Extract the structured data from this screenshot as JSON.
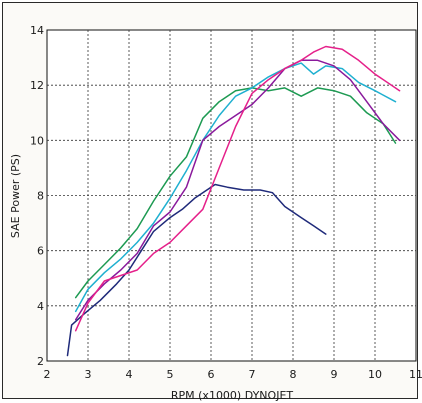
{
  "chart_data": {
    "type": "line",
    "title": "",
    "xlabel": "RPM (x1000)  DYNOJET",
    "ylabel": "SAE Power (PS)",
    "xlim": [
      2,
      11
    ],
    "ylim": [
      2,
      14
    ],
    "x_ticks": [
      "2",
      "3",
      "4",
      "5",
      "6",
      "7",
      "8",
      "9",
      "10",
      "11"
    ],
    "y_ticks": [
      "2",
      "4",
      "6",
      "8",
      "10",
      "12",
      "14"
    ],
    "grid": true,
    "legend": "none",
    "series": [
      {
        "color": "#1f2a7a",
        "points": [
          [
            2.5,
            2.2
          ],
          [
            2.6,
            3.3
          ],
          [
            2.9,
            3.7
          ],
          [
            3.3,
            4.2
          ],
          [
            3.7,
            4.8
          ],
          [
            4.0,
            5.3
          ],
          [
            4.3,
            6.0
          ],
          [
            4.6,
            6.7
          ],
          [
            5.0,
            7.2
          ],
          [
            5.3,
            7.5
          ],
          [
            5.6,
            7.9
          ],
          [
            5.9,
            8.2
          ],
          [
            6.1,
            8.4
          ],
          [
            6.4,
            8.3
          ],
          [
            6.8,
            8.2
          ],
          [
            7.2,
            8.2
          ],
          [
            7.5,
            8.1
          ],
          [
            7.8,
            7.6
          ],
          [
            8.2,
            7.2
          ],
          [
            8.5,
            6.9
          ],
          [
            8.8,
            6.6
          ]
        ]
      },
      {
        "color": "#1d9a52",
        "points": [
          [
            2.7,
            4.3
          ],
          [
            3.0,
            4.9
          ],
          [
            3.4,
            5.5
          ],
          [
            3.8,
            6.1
          ],
          [
            4.2,
            6.8
          ],
          [
            4.6,
            7.8
          ],
          [
            5.0,
            8.7
          ],
          [
            5.4,
            9.4
          ],
          [
            5.8,
            10.8
          ],
          [
            6.2,
            11.4
          ],
          [
            6.6,
            11.8
          ],
          [
            7.0,
            11.9
          ],
          [
            7.4,
            11.8
          ],
          [
            7.8,
            11.9
          ],
          [
            8.2,
            11.6
          ],
          [
            8.6,
            11.9
          ],
          [
            9.0,
            11.8
          ],
          [
            9.4,
            11.6
          ],
          [
            9.8,
            11.0
          ],
          [
            10.2,
            10.6
          ],
          [
            10.5,
            9.9
          ]
        ]
      },
      {
        "color": "#1fb0d0",
        "points": [
          [
            2.7,
            3.8
          ],
          [
            3.0,
            4.6
          ],
          [
            3.4,
            5.2
          ],
          [
            3.8,
            5.7
          ],
          [
            4.2,
            6.3
          ],
          [
            4.6,
            7.0
          ],
          [
            5.0,
            7.9
          ],
          [
            5.4,
            8.9
          ],
          [
            5.8,
            10.0
          ],
          [
            6.2,
            10.9
          ],
          [
            6.6,
            11.6
          ],
          [
            7.0,
            11.9
          ],
          [
            7.4,
            12.3
          ],
          [
            7.8,
            12.6
          ],
          [
            8.2,
            12.8
          ],
          [
            8.5,
            12.4
          ],
          [
            8.8,
            12.7
          ],
          [
            9.2,
            12.6
          ],
          [
            9.6,
            12.1
          ],
          [
            10.0,
            11.8
          ],
          [
            10.5,
            11.4
          ]
        ]
      },
      {
        "color": "#8a1a9c",
        "points": [
          [
            2.7,
            3.5
          ],
          [
            3.0,
            4.2
          ],
          [
            3.4,
            4.8
          ],
          [
            3.8,
            5.3
          ],
          [
            4.2,
            5.9
          ],
          [
            4.6,
            6.9
          ],
          [
            5.0,
            7.4
          ],
          [
            5.4,
            8.3
          ],
          [
            5.8,
            10.0
          ],
          [
            6.2,
            10.5
          ],
          [
            6.6,
            10.9
          ],
          [
            7.0,
            11.3
          ],
          [
            7.4,
            11.9
          ],
          [
            7.8,
            12.6
          ],
          [
            8.2,
            12.9
          ],
          [
            8.6,
            12.9
          ],
          [
            9.0,
            12.7
          ],
          [
            9.4,
            12.2
          ],
          [
            9.8,
            11.4
          ],
          [
            10.2,
            10.6
          ],
          [
            10.6,
            10.0
          ]
        ]
      },
      {
        "color": "#e5208a",
        "points": [
          [
            2.7,
            3.1
          ],
          [
            3.0,
            4.1
          ],
          [
            3.4,
            4.9
          ],
          [
            3.8,
            5.1
          ],
          [
            4.2,
            5.3
          ],
          [
            4.6,
            5.9
          ],
          [
            5.0,
            6.3
          ],
          [
            5.4,
            6.9
          ],
          [
            5.8,
            7.5
          ],
          [
            6.2,
            9.0
          ],
          [
            6.6,
            10.5
          ],
          [
            7.0,
            11.7
          ],
          [
            7.4,
            12.2
          ],
          [
            7.8,
            12.6
          ],
          [
            8.2,
            12.9
          ],
          [
            8.5,
            13.2
          ],
          [
            8.8,
            13.4
          ],
          [
            9.2,
            13.3
          ],
          [
            9.6,
            12.9
          ],
          [
            10.0,
            12.4
          ],
          [
            10.6,
            11.8
          ]
        ]
      }
    ]
  }
}
